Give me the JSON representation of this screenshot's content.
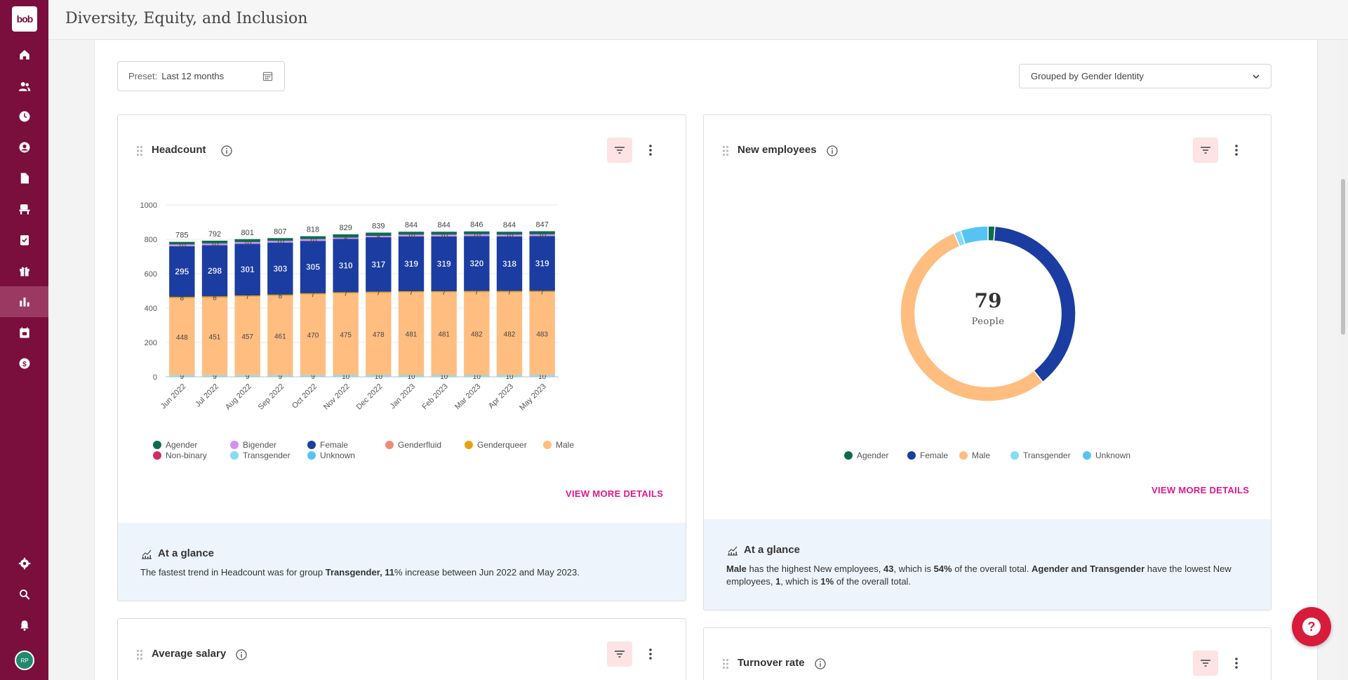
{
  "page_title": "Diversity, Equity, and Inclusion",
  "logo_text": "bob",
  "user_initials": "RP",
  "preset": {
    "label": "Preset:",
    "value": "Last 12 months"
  },
  "group_by": {
    "label": "Grouped by",
    "value": "Gender Identity"
  },
  "headcount": {
    "title": "Headcount",
    "view_more": "VIEW MORE DETAILS",
    "glance_title": "At a glance",
    "glance_text": [
      "The fastest trend in Headcount was for group ",
      "Transgender, 11",
      "% increase between Jun 2022 and May 2023."
    ]
  },
  "new_employees": {
    "title": "New employees",
    "center_value": "79",
    "center_label": "People",
    "view_more": "VIEW MORE DETAILS",
    "glance_title": "At a glance",
    "glance_text": {
      "p1": "Male",
      "p2": " has the highest New employees, ",
      "p3": "43",
      "p4": ", which is ",
      "p5": "54%",
      "p6": " of the overall total. ",
      "p7": "Agender and Transgender",
      "p8": " have the lowest New employees, ",
      "p9": "1",
      "p10": ", which is ",
      "p11": "1%",
      "p12": " of the overall total."
    },
    "legend": [
      {
        "label": "Agender",
        "color": "#0f6b4f"
      },
      {
        "label": "Female",
        "color": "#1b3da1"
      },
      {
        "label": "Male",
        "color": "#ffbd80"
      },
      {
        "label": "Transgender",
        "color": "#85dcf5"
      },
      {
        "label": "Unknown",
        "color": "#55c4f2"
      }
    ]
  },
  "average_salary": {
    "title": "Average salary"
  },
  "turnover_rate": {
    "title": "Turnover rate"
  },
  "chart_data": [
    {
      "type": "bar",
      "stacked": true,
      "title": "Headcount",
      "categories": [
        "Jun 2022",
        "Jul 2022",
        "Aug 2022",
        "Sep 2022",
        "Oct 2022",
        "Nov 2022",
        "Dec 2022",
        "Jan 2023",
        "Feb 2023",
        "Mar 2023",
        "Apr 2023",
        "May 2023"
      ],
      "totals": [
        785,
        792,
        801,
        807,
        818,
        829,
        839,
        844,
        844,
        846,
        844,
        847
      ],
      "ylim": [
        0,
        1000
      ],
      "yticks": [
        0,
        200,
        400,
        600,
        800,
        1000
      ],
      "series": [
        {
          "name": "Transgender",
          "color": "#85dcf5",
          "values": [
            9,
            9,
            9,
            9,
            9,
            10,
            10,
            10,
            10,
            10,
            10,
            10
          ]
        },
        {
          "name": "Male",
          "color": "#ffbd80",
          "values": [
            448,
            451,
            457,
            461,
            470,
            475,
            478,
            481,
            481,
            482,
            482,
            483
          ]
        },
        {
          "name": "Genderqueer",
          "color": "#e8a012",
          "values": [
            8,
            8,
            7,
            8,
            7,
            7,
            7,
            7,
            7,
            7,
            7,
            7
          ]
        },
        {
          "name": "Female",
          "color": "#1b3da1",
          "values": [
            295,
            298,
            301,
            303,
            305,
            310,
            317,
            319,
            319,
            320,
            318,
            319
          ]
        },
        {
          "name": "Bigender",
          "color": "#d58ff2",
          "values": [
            10,
            10,
            10,
            10,
            10,
            8,
            8,
            10,
            10,
            10,
            10,
            10
          ]
        },
        {
          "name": "Agender",
          "color": "#0f6b4f",
          "values": [
            15,
            16,
            17,
            16,
            17,
            19,
            19,
            17,
            17,
            17,
            17,
            18
          ]
        }
      ],
      "legend": [
        {
          "label": "Agender",
          "color": "#0f6b4f"
        },
        {
          "label": "Bigender",
          "color": "#d58ff2"
        },
        {
          "label": "Female",
          "color": "#1b3da1"
        },
        {
          "label": "Genderfluid",
          "color": "#f08a7a"
        },
        {
          "label": "Genderqueer",
          "color": "#e8a012"
        },
        {
          "label": "Male",
          "color": "#ffbd80"
        },
        {
          "label": "Non-binary",
          "color": "#d12d64"
        },
        {
          "label": "Transgender",
          "color": "#85dcf5"
        },
        {
          "label": "Unknown",
          "color": "#55c4f2"
        }
      ]
    },
    {
      "type": "pie",
      "donut": true,
      "title": "New employees",
      "categories": [
        "Agender",
        "Female",
        "Male",
        "Transgender",
        "Unknown"
      ],
      "values": [
        1,
        30,
        43,
        1,
        4
      ],
      "colors": [
        "#0f6b4f",
        "#1b3da1",
        "#ffbd80",
        "#85dcf5",
        "#55c4f2"
      ]
    }
  ]
}
